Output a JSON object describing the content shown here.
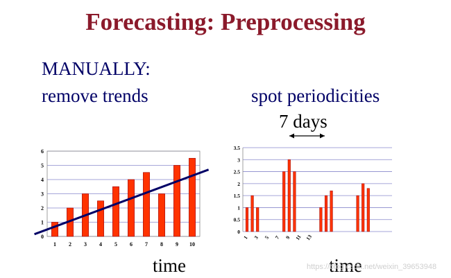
{
  "title": "Forecasting: Preprocessing",
  "colors": {
    "title": "#8b1a2b",
    "bar": "#ff3300",
    "bar_outline": "#990000",
    "trend_line": "#000066",
    "text": "#000066",
    "grid": "#8888cc"
  },
  "labels": {
    "manually": "MANUALLY:",
    "remove_trends": "remove trends",
    "spot_periodicities": "spot periodicities",
    "period_label": "7 days",
    "time_left": "time",
    "time_right": "time"
  },
  "watermark": "https://blog.csdn.net/weixin_39653948",
  "chart_data": [
    {
      "type": "bar",
      "categories": [
        "1",
        "2",
        "3",
        "4",
        "5",
        "6",
        "7",
        "8",
        "9",
        "10"
      ],
      "values": [
        1,
        2,
        3,
        2.5,
        3.5,
        4,
        4.5,
        3,
        5,
        5.5
      ],
      "ylim": [
        0,
        6
      ],
      "yticks": [
        "0",
        "1",
        "2",
        "3",
        "4",
        "5",
        "6"
      ],
      "trend_line": {
        "x": [
          0.8,
          10.8
        ],
        "y": [
          0.4,
          4.6
        ]
      },
      "grid": true,
      "xlabel": "time"
    },
    {
      "type": "bar",
      "x": [
        1,
        2,
        3,
        4,
        5,
        6,
        7,
        8,
        9,
        10,
        11,
        12,
        13,
        14,
        15,
        16,
        17,
        18,
        19,
        20,
        21,
        22,
        23,
        24,
        25,
        26,
        27
      ],
      "values": [
        1,
        1.5,
        1,
        0,
        0,
        0,
        0,
        2.5,
        3,
        2.5,
        0,
        0,
        0,
        0,
        1,
        1.5,
        1.7,
        0,
        0,
        0,
        0,
        1.5,
        2,
        1.8,
        0,
        0,
        0
      ],
      "xtick_labels": [
        "1",
        "3",
        "5",
        "7",
        "9",
        "11",
        "13"
      ],
      "ylim": [
        0,
        3.5
      ],
      "yticks": [
        "0",
        "0.5",
        "1",
        "1.5",
        "2",
        "2.5",
        "3",
        "3.5"
      ],
      "grid": true,
      "xlabel": "time"
    }
  ]
}
